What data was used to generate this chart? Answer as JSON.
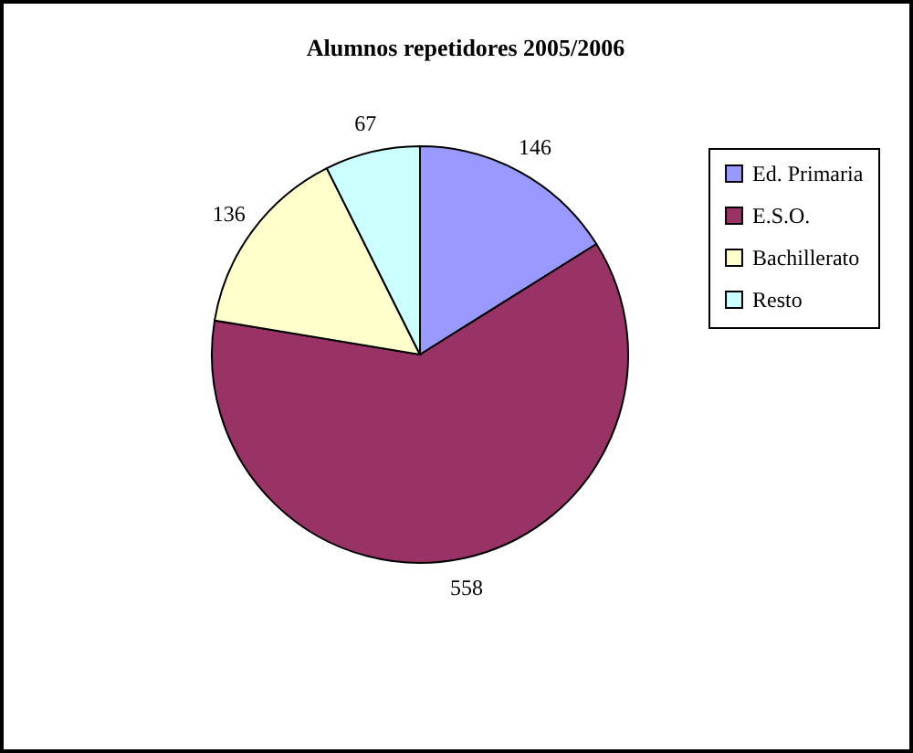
{
  "chart_data": {
    "type": "pie",
    "title": "Alumnos repetidores 2005/2006",
    "categories": [
      "Ed. Primaria",
      "E.S.O.",
      "Bachillerato",
      "Resto"
    ],
    "values": [
      146,
      558,
      136,
      67
    ],
    "colors": [
      "#9999ff",
      "#993366",
      "#ffffcc",
      "#ccffff"
    ],
    "data_labels": true,
    "legend": "right"
  }
}
